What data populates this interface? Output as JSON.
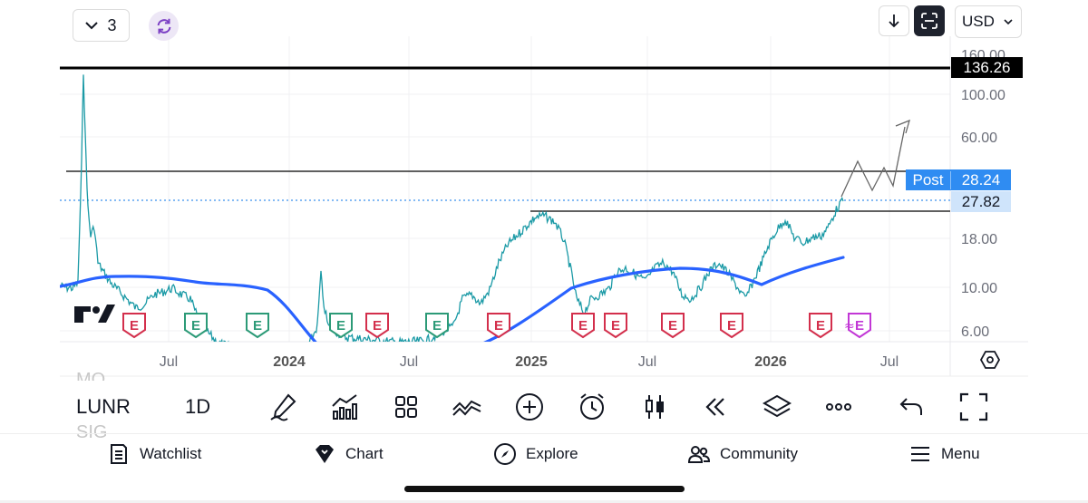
{
  "top_bar": {
    "layout_count": "3",
    "currency": "USD"
  },
  "price_axis": {
    "labels": [
      "160.00",
      "100.00",
      "60.00",
      "18.00",
      "10.00",
      "6.00"
    ]
  },
  "price_tags": {
    "high_level": "136.26",
    "post_label": "Post",
    "post_value": "28.24",
    "last_price": "27.82"
  },
  "time_axis": {
    "labels": [
      {
        "text": "Jul",
        "year": false
      },
      {
        "text": "2024",
        "year": true
      },
      {
        "text": "Jul",
        "year": false
      },
      {
        "text": "2025",
        "year": true
      },
      {
        "text": "Jul",
        "year": false
      },
      {
        "text": "2026",
        "year": true
      },
      {
        "text": "Jul",
        "year": false
      }
    ]
  },
  "earnings_markers": [
    {
      "text": "E",
      "color": "#d32f4c"
    },
    {
      "text": "E",
      "color": "#2c9a77"
    },
    {
      "text": "E",
      "color": "#2c9a77"
    },
    {
      "text": "E",
      "color": "#2c9a77"
    },
    {
      "text": "E",
      "color": "#d32f4c"
    },
    {
      "text": "E",
      "color": "#2c9a77"
    },
    {
      "text": "E",
      "color": "#d32f4c"
    },
    {
      "text": "E",
      "color": "#d32f4c"
    },
    {
      "text": "E",
      "color": "#d32f4c"
    },
    {
      "text": "E",
      "color": "#d32f4c"
    },
    {
      "text": "E",
      "color": "#d32f4c"
    },
    {
      "text": "E",
      "color": "#d32f4c"
    },
    {
      "text": "E",
      "color": "#c237d6"
    }
  ],
  "watermark": "TV",
  "toolbar": {
    "ticker": "LUNR",
    "interval": "1D",
    "ghost_above": "MO",
    "ghost_below": "SIG"
  },
  "nav": {
    "watchlist": "Watchlist",
    "chart": "Chart",
    "explore": "Explore",
    "community": "Community",
    "menu": "Menu"
  },
  "colors": {
    "price_series": "#1b9aa6",
    "moving_average": "#2962ff",
    "post_tag": "#2f8cf2",
    "last_price_tag": "#cfe4fb",
    "earnings_negative": "#d32f4c",
    "earnings_positive": "#2c9a77",
    "earnings_upcoming": "#c237d6"
  }
}
